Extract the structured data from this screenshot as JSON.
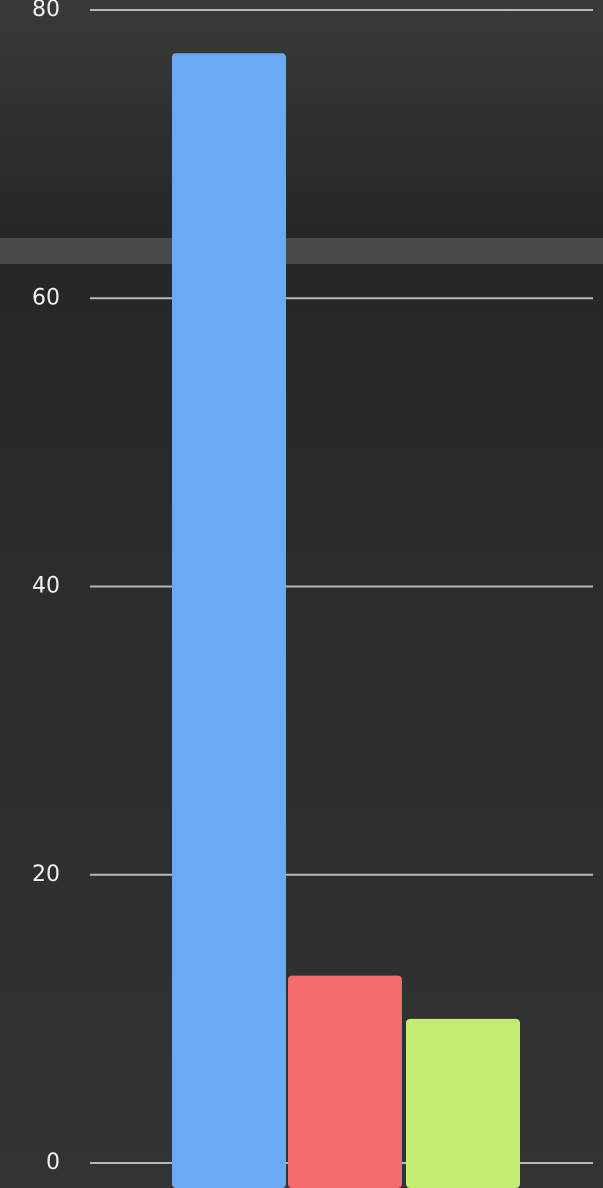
{
  "chart_data": {
    "type": "bar",
    "categories": [
      null,
      null,
      null
    ],
    "values": [
      77,
      13,
      10
    ],
    "colors": [
      "#6aaaf5",
      "#f36b6a",
      "#c5ec72"
    ],
    "ylim": [
      0,
      80
    ],
    "yticks": [
      0,
      20,
      40,
      60,
      80
    ],
    "grid": true
  }
}
